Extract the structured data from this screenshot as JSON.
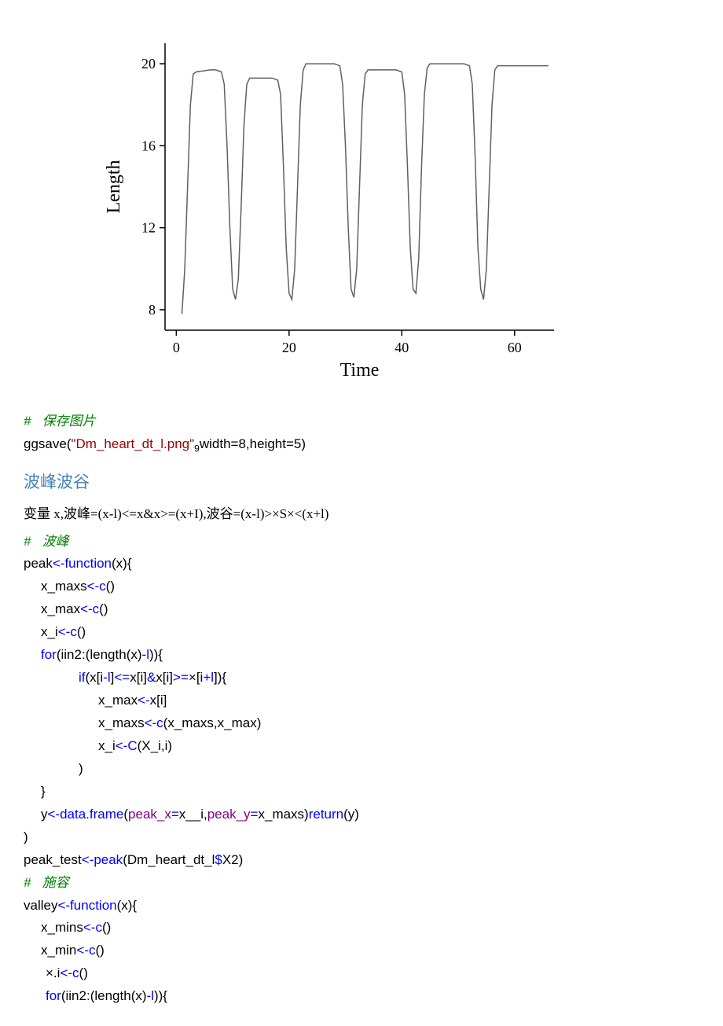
{
  "chart": {
    "type": "line",
    "xlabel": "Time",
    "ylabel": "Length",
    "xlabel_fontsize": 24,
    "ylabel_fontsize": 24,
    "tick_fontsize": 18,
    "xlim": [
      -2,
      67
    ],
    "ylim": [
      7,
      21
    ],
    "xticks": [
      0,
      20,
      40,
      60
    ],
    "yticks": [
      8,
      12,
      16,
      20
    ],
    "background_color": "#ffffff",
    "line_color": "#606060",
    "line_width": 1.5,
    "axis_color": "#000000",
    "grid": false,
    "values": [
      [
        1,
        7.8
      ],
      [
        1.5,
        10
      ],
      [
        2,
        14
      ],
      [
        2.5,
        18
      ],
      [
        3,
        19.5
      ],
      [
        3.5,
        19.6
      ],
      [
        6,
        19.7
      ],
      [
        7,
        19.7
      ],
      [
        8,
        19.6
      ],
      [
        8.5,
        19
      ],
      [
        9,
        16
      ],
      [
        9.5,
        12
      ],
      [
        10,
        9
      ],
      [
        10.5,
        8.5
      ],
      [
        11,
        9.5
      ],
      [
        11.5,
        13
      ],
      [
        12,
        17
      ],
      [
        12.5,
        19
      ],
      [
        13,
        19.3
      ],
      [
        17,
        19.3
      ],
      [
        18,
        19.2
      ],
      [
        18.5,
        18.5
      ],
      [
        19,
        15
      ],
      [
        19.5,
        11
      ],
      [
        20,
        8.8
      ],
      [
        20.5,
        8.5
      ],
      [
        21,
        10
      ],
      [
        21.5,
        14
      ],
      [
        22,
        18
      ],
      [
        22.5,
        19.7
      ],
      [
        23,
        20
      ],
      [
        28,
        20
      ],
      [
        29,
        19.9
      ],
      [
        29.5,
        19
      ],
      [
        30,
        16
      ],
      [
        30.5,
        12
      ],
      [
        31,
        9
      ],
      [
        31.5,
        8.6
      ],
      [
        32,
        10
      ],
      [
        32.5,
        14
      ],
      [
        33,
        18
      ],
      [
        33.5,
        19.5
      ],
      [
        34,
        19.7
      ],
      [
        39,
        19.7
      ],
      [
        40,
        19.6
      ],
      [
        40.5,
        18.5
      ],
      [
        41,
        15
      ],
      [
        41.5,
        11
      ],
      [
        42,
        9
      ],
      [
        42.5,
        8.8
      ],
      [
        43,
        10.5
      ],
      [
        43.5,
        15
      ],
      [
        44,
        18.5
      ],
      [
        44.5,
        19.8
      ],
      [
        45,
        20
      ],
      [
        51,
        20
      ],
      [
        52,
        19.9
      ],
      [
        52.5,
        19
      ],
      [
        53,
        15.5
      ],
      [
        53.5,
        11
      ],
      [
        54,
        9
      ],
      [
        54.5,
        8.5
      ],
      [
        55,
        10
      ],
      [
        55.5,
        14
      ],
      [
        56,
        18
      ],
      [
        56.5,
        19.7
      ],
      [
        57,
        19.9
      ],
      [
        66,
        19.9
      ]
    ]
  },
  "comment_save": "#   保存图片",
  "ggsave_line": {
    "func": "ggsave",
    "paren_open": "(",
    "str": "\"Dm_heart_dt_l.png\"",
    "sub": "9",
    "args": "width=8,height=5)"
  },
  "heading": "波峰波谷",
  "formula_text": "变量 x,波峰=(x-l)<=x&x>=(x+I),波谷=(x-l)>×S×<(x+l)",
  "peak_comment": "#   波峰",
  "peak_l1": {
    "a": "peak",
    "b": "<-function",
    "c": "(x){"
  },
  "peak_l2": {
    "a": "x_maxs",
    "b": "<-c",
    "c": "()"
  },
  "peak_l3": {
    "a": "x_max",
    "b": "<-c",
    "c": "()"
  },
  "peak_l4": {
    "a": "x_i",
    "b": "<-c",
    "c": "()"
  },
  "peak_l5": {
    "a": "for",
    "b": "(iin2",
    "c": ":",
    "d": "(",
    "e": "length",
    "f": "(x)",
    "g": "-l",
    "h": ")){"
  },
  "peak_l6": {
    "a": "if",
    "b": "(x[i",
    "c": "-l",
    "d": "]",
    "e": "<=",
    "f": "x[i]",
    "g": "&",
    "h": "x[i]",
    "i": ">=",
    "j": "×[i",
    "k": "+l",
    "l": "]){"
  },
  "peak_l7": {
    "a": "x_max",
    "b": "<-",
    "c": "x[i]"
  },
  "peak_l8": {
    "a": "x_maxs",
    "b": "<-c",
    "c": "(x_maxs,x_max)"
  },
  "peak_l9": {
    "a": "x_i",
    "b": "<-C",
    "c": "(X_i,i)"
  },
  "peak_l10": ")",
  "peak_l11": "}",
  "peak_l12": {
    "a": "y",
    "b": "<-data.frame",
    "c": "(",
    "d": "peak_x",
    "e": "=",
    "f": "x__i,",
    "g": "peak_y",
    "h": "=",
    "i": "x_maxs)",
    "j": "return",
    "k": "(y)"
  },
  "peak_l13": ")",
  "peak_l14": {
    "a": "peak_test",
    "b": "<-peak",
    "c": "(Dm_heart_dt_l",
    "d": "$",
    "e": "X2)"
  },
  "valley_comment": "#   施容",
  "valley_l1": {
    "a": "valley",
    "b": "<-function",
    "c": "(x){"
  },
  "valley_l2": {
    "a": "x_mins",
    "b": "<-c",
    "c": "()"
  },
  "valley_l3": {
    "a": "x_min",
    "b": "<-c",
    "c": "()"
  },
  "valley_l4": {
    "a": "×.i",
    "b": "<-c",
    "c": "()"
  },
  "valley_l5": {
    "a": "for",
    "b": "(iin2",
    "c": ":",
    "d": "(",
    "e": "length",
    "f": "(x)",
    "g": "-l",
    "h": ")){"
  }
}
